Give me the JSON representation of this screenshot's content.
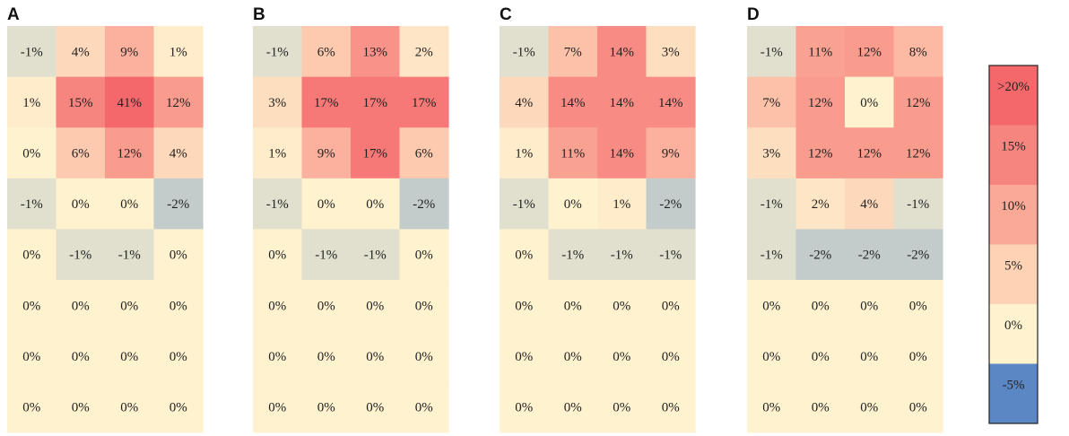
{
  "chart_data": {
    "type": "heatmap",
    "rows": 8,
    "cols": 4,
    "panels": [
      {
        "label": "A",
        "values": [
          [
            -1,
            4,
            9,
            1
          ],
          [
            1,
            15,
            41,
            12
          ],
          [
            0,
            6,
            12,
            4
          ],
          [
            -1,
            0,
            0,
            -2
          ],
          [
            0,
            -1,
            -1,
            0
          ],
          [
            0,
            0,
            0,
            0
          ],
          [
            0,
            0,
            0,
            0
          ],
          [
            0,
            0,
            0,
            0
          ]
        ]
      },
      {
        "label": "B",
        "values": [
          [
            -1,
            6,
            13,
            2
          ],
          [
            3,
            17,
            17,
            17
          ],
          [
            1,
            9,
            17,
            6
          ],
          [
            -1,
            0,
            0,
            -2
          ],
          [
            0,
            -1,
            -1,
            0
          ],
          [
            0,
            0,
            0,
            0
          ],
          [
            0,
            0,
            0,
            0
          ],
          [
            0,
            0,
            0,
            0
          ]
        ]
      },
      {
        "label": "C",
        "values": [
          [
            -1,
            7,
            14,
            3
          ],
          [
            4,
            14,
            14,
            14
          ],
          [
            1,
            11,
            14,
            9
          ],
          [
            -1,
            0,
            1,
            -2
          ],
          [
            0,
            -1,
            -1,
            -1
          ],
          [
            0,
            0,
            0,
            0
          ],
          [
            0,
            0,
            0,
            0
          ],
          [
            0,
            0,
            0,
            0
          ]
        ]
      },
      {
        "label": "D",
        "values": [
          [
            -1,
            11,
            12,
            8
          ],
          [
            7,
            12,
            0,
            12
          ],
          [
            3,
            12,
            12,
            12
          ],
          [
            -1,
            2,
            4,
            -1
          ],
          [
            -1,
            -2,
            -2,
            -2
          ],
          [
            0,
            0,
            0,
            0
          ],
          [
            0,
            0,
            0,
            0
          ],
          [
            0,
            0,
            0,
            0
          ]
        ]
      }
    ],
    "value_suffix": "%",
    "legend": {
      "type": "colorbar",
      "placement": "right",
      "levels": [
        {
          "label": ">20%",
          "color": "#f4676b"
        },
        {
          "label": "15%",
          "color": "#f7857f"
        },
        {
          "label": "10%",
          "color": "#fba997"
        },
        {
          "label": "5%",
          "color": "#fdd2b5"
        },
        {
          "label": "0%",
          "color": "#fef2cf"
        },
        {
          "label": "-5%",
          "color": "#5b87c5"
        }
      ]
    }
  }
}
